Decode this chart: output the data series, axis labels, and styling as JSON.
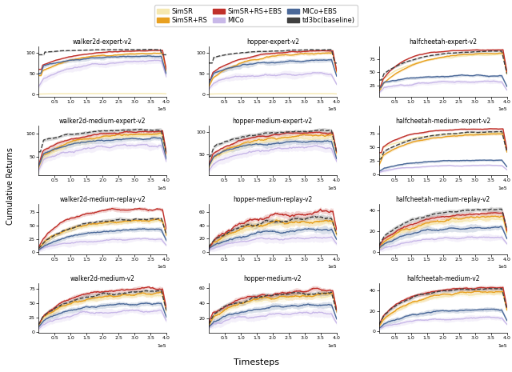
{
  "colors": {
    "SimSR": "#f5e8b0",
    "SimSR+RS": "#e8a020",
    "SimSR+RS+EBS": "#c0302a",
    "MICo": "#c8b8e8",
    "MICo+EBS": "#4a6898",
    "td3bc": "#404040"
  },
  "titles": [
    [
      "walker2d-expert-v2",
      "hopper-expert-v2",
      "halfcheetah-expert-v2"
    ],
    [
      "walker2d-medium-expert-v2",
      "hopper-medium-expert-v2",
      "halfcheetah-medium-expert-v2"
    ],
    [
      "walker2d-medium-replay-v2",
      "hopper-medium-replay-v2",
      "halfcheetah-medium-replay-v2"
    ],
    [
      "walker2d-medium-v2",
      "hopper-medium-v2",
      "halfcheetah-medium-v2"
    ]
  ],
  "ylabel": "Cumulative Returns",
  "xlabel": "Timesteps",
  "legend_labels": [
    "SimSR",
    "SimSR+RS",
    "SimSR+RS+EBS",
    "MICo",
    "MICo+EBS",
    "td3bc(baseline)"
  ]
}
